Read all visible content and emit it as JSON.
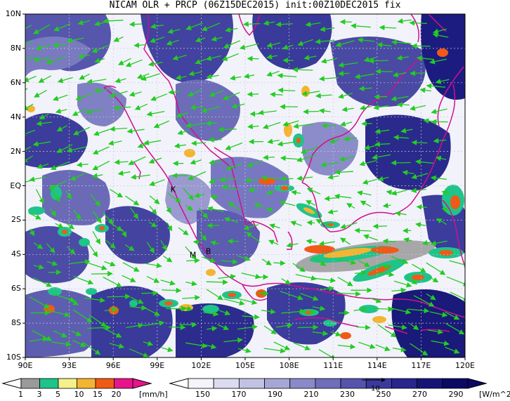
{
  "title": "NICAM OLR + PRCP (06Z15DEC2015) init:00Z10DEC2015 fix",
  "map": {
    "lon_range": [
      90,
      120
    ],
    "lat_range": [
      -10,
      10
    ],
    "lat_ticks": [
      "10N",
      "8N",
      "6N",
      "4N",
      "2N",
      "EQ",
      "2S",
      "4S",
      "6S",
      "8S",
      "10S"
    ],
    "lon_ticks": [
      "90E",
      "93E",
      "96E",
      "99E",
      "102E",
      "105E",
      "108E",
      "111E",
      "114E",
      "117E",
      "120E"
    ],
    "place_labels": [
      {
        "text": "K",
        "lon": 100.1,
        "lat": -0.2
      },
      {
        "text": "M",
        "lon": 101.4,
        "lat": -4.0
      },
      {
        "text": "B",
        "lon": 102.5,
        "lat": -3.8
      }
    ],
    "wind_vector_color": "#22cc22",
    "coastline_color": "#d0108c"
  },
  "precip_colorbar": {
    "labels": [
      "1",
      "3",
      "5",
      "10",
      "15",
      "20"
    ],
    "unit": "[mm/h]",
    "colors": [
      "#9a9a9a",
      "#1fc48a",
      "#f4f08c",
      "#f4b430",
      "#f05a16",
      "#e8148c"
    ]
  },
  "olr_colorbar": {
    "labels": [
      "150",
      "170",
      "190",
      "210",
      "230",
      "250",
      "270",
      "290"
    ],
    "unit": "[W/m^2]",
    "vector_ref": "10",
    "colors": [
      "#f4f4fb",
      "#dcdcf0",
      "#c2c2e4",
      "#a6a6d6",
      "#8a8ac8",
      "#6e6eba",
      "#5454ac",
      "#3a3a9c",
      "#26268c",
      "#151578",
      "#0a0a64"
    ]
  }
}
